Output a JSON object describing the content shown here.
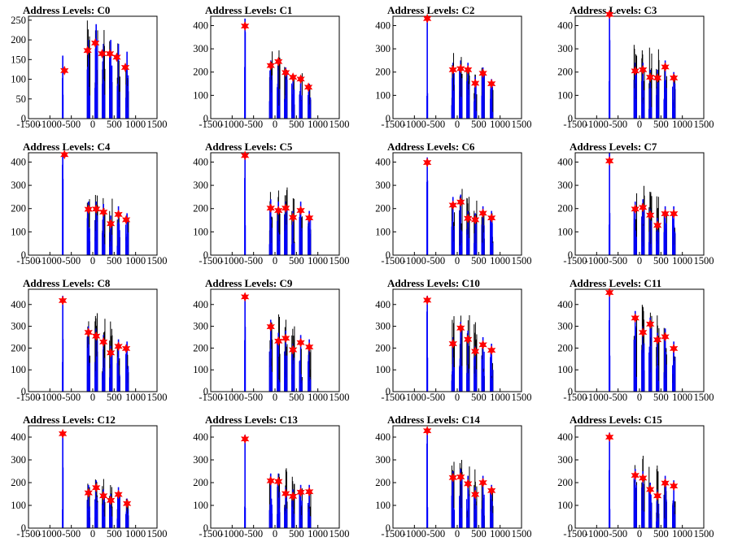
{
  "chart_data": {
    "type": "histogram-grid",
    "xlim": [
      -1500,
      1500
    ],
    "x_ticks": [
      -1500,
      -1000,
      -500,
      0,
      500,
      1000,
      1500
    ],
    "x_tick_labels": [
      "-1500",
      "-1000",
      "-500",
      "0",
      "500",
      "1000",
      "1500"
    ],
    "colors": {
      "histogram": "#0000ff",
      "overlay": "#000000",
      "marker": "#ff0000",
      "frame": "#000000"
    },
    "marker_shape": "red-star",
    "peak_x": [
      -700,
      -100,
      80,
      250,
      420,
      600,
      800
    ],
    "panels": [
      {
        "title": "Address Levels: C0",
        "ylim": [
          0,
          260
        ],
        "y_ticks": [
          0,
          50,
          100,
          150,
          200,
          250
        ],
        "peaks": [
          {
            "x": -660,
            "y": 122
          },
          {
            "x": -120,
            "y": 173
          },
          {
            "x": 60,
            "y": 192
          },
          {
            "x": 220,
            "y": 165
          },
          {
            "x": 400,
            "y": 165
          },
          {
            "x": 560,
            "y": 156
          },
          {
            "x": 760,
            "y": 130
          }
        ],
        "bars_blue": [
          160,
          200,
          240,
          190,
          200,
          190,
          170
        ],
        "bars_black": [
          130,
          250,
          250,
          230,
          230,
          200,
          160
        ]
      },
      {
        "title": "Address Levels: C1",
        "ylim": [
          0,
          440
        ],
        "y_ticks": [
          0,
          100,
          200,
          300,
          400
        ],
        "peaks": [
          {
            "x": -700,
            "y": 398
          },
          {
            "x": -100,
            "y": 228
          },
          {
            "x": 80,
            "y": 245
          },
          {
            "x": 250,
            "y": 198
          },
          {
            "x": 420,
            "y": 178
          },
          {
            "x": 600,
            "y": 170
          },
          {
            "x": 780,
            "y": 135
          }
        ],
        "bars_blue": [
          430,
          250,
          260,
          220,
          190,
          180,
          150
        ],
        "bars_black": [
          380,
          290,
          310,
          250,
          200,
          200,
          160
        ]
      },
      {
        "title": "Address Levels: C2",
        "ylim": [
          0,
          440
        ],
        "y_ticks": [
          0,
          100,
          200,
          300,
          400
        ],
        "peaks": [
          {
            "x": -700,
            "y": 430
          },
          {
            "x": -100,
            "y": 210
          },
          {
            "x": 80,
            "y": 215
          },
          {
            "x": 250,
            "y": 210
          },
          {
            "x": 420,
            "y": 152
          },
          {
            "x": 600,
            "y": 195
          },
          {
            "x": 800,
            "y": 150
          }
        ],
        "bars_blue": [
          440,
          240,
          250,
          240,
          180,
          220,
          170
        ],
        "bars_black": [
          400,
          300,
          310,
          280,
          200,
          230,
          170
        ]
      },
      {
        "title": "Address Levels: C3",
        "ylim": [
          0,
          440
        ],
        "y_ticks": [
          0,
          100,
          200,
          300,
          400
        ],
        "peaks": [
          {
            "x": -700,
            "y": 448
          },
          {
            "x": -100,
            "y": 205
          },
          {
            "x": 80,
            "y": 210
          },
          {
            "x": 250,
            "y": 178
          },
          {
            "x": 420,
            "y": 175
          },
          {
            "x": 600,
            "y": 222
          },
          {
            "x": 800,
            "y": 175
          }
        ],
        "bars_blue": [
          440,
          240,
          240,
          210,
          210,
          250,
          200
        ],
        "bars_black": [
          400,
          330,
          340,
          330,
          300,
          240,
          190
        ]
      },
      {
        "title": "Address Levels: C4",
        "ylim": [
          0,
          440
        ],
        "y_ticks": [
          0,
          100,
          200,
          300,
          400
        ],
        "peaks": [
          {
            "x": -660,
            "y": 432
          },
          {
            "x": -100,
            "y": 197
          },
          {
            "x": 80,
            "y": 198
          },
          {
            "x": 250,
            "y": 185
          },
          {
            "x": 420,
            "y": 135
          },
          {
            "x": 600,
            "y": 175
          },
          {
            "x": 780,
            "y": 152
          }
        ],
        "bars_blue": [
          440,
          230,
          230,
          220,
          170,
          210,
          180
        ],
        "bars_black": [
          400,
          260,
          260,
          280,
          260,
          200,
          170
        ]
      },
      {
        "title": "Address Levels: C5",
        "ylim": [
          0,
          440
        ],
        "y_ticks": [
          0,
          100,
          200,
          300,
          400
        ],
        "peaks": [
          {
            "x": -700,
            "y": 428
          },
          {
            "x": -100,
            "y": 202
          },
          {
            "x": 80,
            "y": 192
          },
          {
            "x": 250,
            "y": 202
          },
          {
            "x": 420,
            "y": 162
          },
          {
            "x": 600,
            "y": 192
          },
          {
            "x": 800,
            "y": 160
          }
        ],
        "bars_blue": [
          440,
          240,
          230,
          230,
          190,
          230,
          190
        ],
        "bars_black": [
          400,
          280,
          310,
          300,
          280,
          210,
          180
        ]
      },
      {
        "title": "Address Levels: C6",
        "ylim": [
          0,
          440
        ],
        "y_ticks": [
          0,
          100,
          200,
          300,
          400
        ],
        "peaks": [
          {
            "x": -700,
            "y": 398
          },
          {
            "x": -100,
            "y": 215
          },
          {
            "x": 80,
            "y": 228
          },
          {
            "x": 250,
            "y": 158
          },
          {
            "x": 420,
            "y": 152
          },
          {
            "x": 600,
            "y": 180
          },
          {
            "x": 800,
            "y": 160
          }
        ],
        "bars_blue": [
          420,
          250,
          260,
          190,
          180,
          210,
          190
        ],
        "bars_black": [
          380,
          280,
          290,
          270,
          270,
          190,
          180
        ]
      },
      {
        "title": "Address Levels: C7",
        "ylim": [
          0,
          440
        ],
        "y_ticks": [
          0,
          100,
          200,
          300,
          400
        ],
        "peaks": [
          {
            "x": -700,
            "y": 405
          },
          {
            "x": -100,
            "y": 198
          },
          {
            "x": 80,
            "y": 205
          },
          {
            "x": 250,
            "y": 172
          },
          {
            "x": 420,
            "y": 128
          },
          {
            "x": 600,
            "y": 178
          },
          {
            "x": 800,
            "y": 178
          }
        ],
        "bars_blue": [
          440,
          230,
          240,
          200,
          160,
          210,
          210
        ],
        "bars_black": [
          400,
          280,
          300,
          280,
          260,
          200,
          190
        ]
      },
      {
        "title": "Address Levels: C8",
        "ylim": [
          0,
          470
        ],
        "y_ticks": [
          0,
          100,
          200,
          300,
          400
        ],
        "peaks": [
          {
            "x": -700,
            "y": 418
          },
          {
            "x": -100,
            "y": 272
          },
          {
            "x": 80,
            "y": 255
          },
          {
            "x": 250,
            "y": 228
          },
          {
            "x": 420,
            "y": 178
          },
          {
            "x": 600,
            "y": 208
          },
          {
            "x": 780,
            "y": 198
          }
        ],
        "bars_blue": [
          440,
          300,
          290,
          260,
          210,
          240,
          230
        ],
        "bars_black": [
          400,
          340,
          370,
          350,
          330,
          240,
          220
        ]
      },
      {
        "title": "Address Levels: C9",
        "ylim": [
          0,
          470
        ],
        "y_ticks": [
          0,
          100,
          200,
          300,
          400
        ],
        "peaks": [
          {
            "x": -700,
            "y": 435
          },
          {
            "x": -100,
            "y": 298
          },
          {
            "x": 80,
            "y": 232
          },
          {
            "x": 250,
            "y": 245
          },
          {
            "x": 420,
            "y": 192
          },
          {
            "x": 600,
            "y": 225
          },
          {
            "x": 800,
            "y": 205
          }
        ],
        "bars_blue": [
          450,
          330,
          270,
          280,
          220,
          260,
          240
        ],
        "bars_black": [
          410,
          350,
          380,
          360,
          330,
          250,
          230
        ]
      },
      {
        "title": "Address Levels: C10",
        "ylim": [
          0,
          470
        ],
        "y_ticks": [
          0,
          100,
          200,
          300,
          400
        ],
        "peaks": [
          {
            "x": -700,
            "y": 420
          },
          {
            "x": -100,
            "y": 220
          },
          {
            "x": 80,
            "y": 292
          },
          {
            "x": 250,
            "y": 240
          },
          {
            "x": 420,
            "y": 185
          },
          {
            "x": 600,
            "y": 215
          },
          {
            "x": 800,
            "y": 190
          }
        ],
        "bars_blue": [
          440,
          250,
          320,
          280,
          210,
          250,
          220
        ],
        "bars_black": [
          400,
          360,
          380,
          370,
          330,
          240,
          210
        ]
      },
      {
        "title": "Address Levels: C11",
        "ylim": [
          0,
          470
        ],
        "y_ticks": [
          0,
          100,
          200,
          300,
          400
        ],
        "peaks": [
          {
            "x": -700,
            "y": 455
          },
          {
            "x": -100,
            "y": 338
          },
          {
            "x": 80,
            "y": 272
          },
          {
            "x": 250,
            "y": 310
          },
          {
            "x": 420,
            "y": 238
          },
          {
            "x": 600,
            "y": 252
          },
          {
            "x": 800,
            "y": 198
          }
        ],
        "bars_blue": [
          460,
          370,
          300,
          340,
          270,
          290,
          230
        ],
        "bars_black": [
          420,
          380,
          400,
          380,
          360,
          300,
          220
        ]
      },
      {
        "title": "Address Levels: C12",
        "ylim": [
          0,
          450
        ],
        "y_ticks": [
          0,
          100,
          200,
          300,
          400
        ],
        "peaks": [
          {
            "x": -700,
            "y": 415
          },
          {
            "x": -100,
            "y": 155
          },
          {
            "x": 80,
            "y": 178
          },
          {
            "x": 250,
            "y": 142
          },
          {
            "x": 420,
            "y": 122
          },
          {
            "x": 600,
            "y": 148
          },
          {
            "x": 800,
            "y": 108
          }
        ],
        "bars_blue": [
          420,
          190,
          210,
          170,
          150,
          180,
          130
        ],
        "bars_black": [
          380,
          210,
          230,
          230,
          220,
          170,
          140
        ]
      },
      {
        "title": "Address Levels: C13",
        "ylim": [
          0,
          450
        ],
        "y_ticks": [
          0,
          100,
          200,
          300,
          400
        ],
        "peaks": [
          {
            "x": -700,
            "y": 392
          },
          {
            "x": -100,
            "y": 208
          },
          {
            "x": 80,
            "y": 205
          },
          {
            "x": 250,
            "y": 152
          },
          {
            "x": 420,
            "y": 140
          },
          {
            "x": 600,
            "y": 158
          },
          {
            "x": 800,
            "y": 160
          }
        ],
        "bars_blue": [
          410,
          240,
          240,
          180,
          170,
          190,
          190
        ],
        "bars_black": [
          370,
          250,
          270,
          270,
          250,
          180,
          170
        ]
      },
      {
        "title": "Address Levels: C14",
        "ylim": [
          0,
          450
        ],
        "y_ticks": [
          0,
          100,
          200,
          300,
          400
        ],
        "peaks": [
          {
            "x": -700,
            "y": 428
          },
          {
            "x": -100,
            "y": 222
          },
          {
            "x": 80,
            "y": 225
          },
          {
            "x": 250,
            "y": 195
          },
          {
            "x": 420,
            "y": 148
          },
          {
            "x": 600,
            "y": 200
          },
          {
            "x": 800,
            "y": 165
          }
        ],
        "bars_blue": [
          440,
          250,
          260,
          230,
          180,
          230,
          190
        ],
        "bars_black": [
          400,
          300,
          310,
          290,
          270,
          210,
          180
        ]
      },
      {
        "title": "Address Levels: C15",
        "ylim": [
          0,
          450
        ],
        "y_ticks": [
          0,
          100,
          200,
          300,
          400
        ],
        "peaks": [
          {
            "x": -700,
            "y": 400
          },
          {
            "x": -100,
            "y": 232
          },
          {
            "x": 80,
            "y": 220
          },
          {
            "x": 250,
            "y": 170
          },
          {
            "x": 420,
            "y": 142
          },
          {
            "x": 600,
            "y": 198
          },
          {
            "x": 800,
            "y": 185
          }
        ],
        "bars_blue": [
          420,
          260,
          250,
          200,
          170,
          230,
          210
        ],
        "bars_black": [
          380,
          290,
          340,
          330,
          300,
          220,
          200
        ]
      }
    ]
  }
}
